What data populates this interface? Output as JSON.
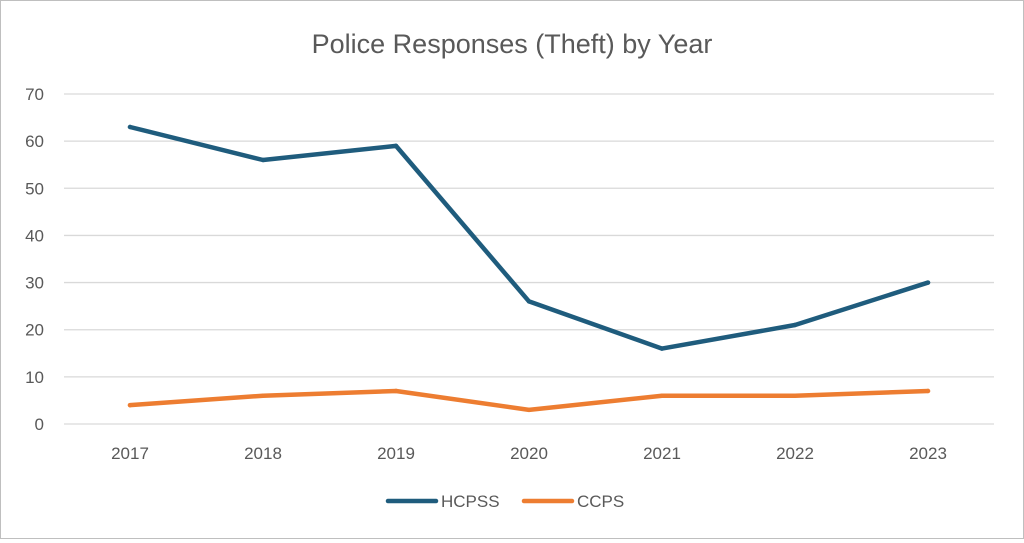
{
  "chart_data": {
    "type": "line",
    "title": "Police Responses (Theft) by Year",
    "xlabel": "",
    "ylabel": "",
    "categories": [
      "2017",
      "2018",
      "2019",
      "2020",
      "2021",
      "2022",
      "2023"
    ],
    "ylim": [
      0,
      70
    ],
    "yticks": [
      0,
      10,
      20,
      30,
      40,
      50,
      60,
      70
    ],
    "grid": true,
    "legend_position": "bottom",
    "series": [
      {
        "name": "HCPSS",
        "color": "#1f5c7d",
        "values": [
          63,
          56,
          59,
          26,
          16,
          21,
          30
        ]
      },
      {
        "name": "CCPS",
        "color": "#ed7d31",
        "values": [
          4,
          6,
          7,
          3,
          6,
          6,
          7
        ]
      }
    ]
  }
}
